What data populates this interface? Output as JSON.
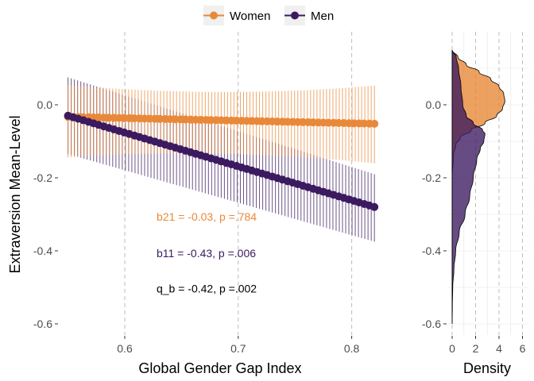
{
  "colors": {
    "women": "#e8893a",
    "men": "#3b1a5f",
    "grid": "#c7c7c7",
    "dashed": "#bdbdbd"
  },
  "legend": {
    "women": "Women",
    "men": "Men"
  },
  "chart_data": [
    {
      "type": "line",
      "xlabel": "Global Gender Gap Index",
      "ylabel": "Extraversion Mean-Level",
      "xlim": [
        0.53,
        0.84
      ],
      "ylim": [
        -0.64,
        0.19
      ],
      "x_ticks": [
        0.6,
        0.7,
        0.8
      ],
      "x_tick_labels": [
        "0.6",
        "0.7",
        "0.8"
      ],
      "y_ticks": [
        0.0,
        -0.2,
        -0.4,
        -0.6
      ],
      "y_tick_labels": [
        "0.0",
        "-0.2",
        "-0.4",
        "-0.6"
      ],
      "grid": false,
      "vlines_dashed": [
        0.6,
        0.7,
        0.8
      ],
      "legend_position": "top",
      "series": [
        {
          "name": "Women",
          "x_range": [
            0.55,
            0.82
          ],
          "fit": [
            -0.033,
            -0.052
          ],
          "ci_lower": [
            -0.135,
            -0.13
          ],
          "ci_upper": [
            0.045,
            0.022
          ]
        },
        {
          "name": "Men",
          "x_range": [
            0.55,
            0.82
          ],
          "fit": [
            -0.03,
            -0.28
          ],
          "ci_lower": [
            -0.135,
            -0.375
          ],
          "ci_upper": [
            0.075,
            -0.19
          ]
        }
      ],
      "annotations": [
        {
          "text": "b21 = -0.03, p =.784",
          "series": "Women",
          "x": 0.628,
          "y": -0.307
        },
        {
          "text": "b11 = -0.43, p =.006",
          "series": "Men",
          "x": 0.628,
          "y": -0.407
        },
        {
          "text": "q_b = -0.42, p =.002",
          "series": "",
          "x": 0.628,
          "y": -0.503
        }
      ]
    },
    {
      "type": "area",
      "xlabel": "Density",
      "xlim": [
        -0.4,
        6.5
      ],
      "x_ticks": [
        0,
        2,
        4,
        6
      ],
      "x_tick_labels": [
        "0",
        "2",
        "4",
        "6"
      ],
      "orientation": "horizontal",
      "series": [
        {
          "name": "Women",
          "y": [
            0.15,
            0.13,
            0.11,
            0.09,
            0.07,
            0.05,
            0.03,
            0.01,
            -0.01,
            -0.03,
            -0.05,
            -0.07,
            -0.09,
            -0.11,
            -0.14,
            -0.2,
            -0.3,
            -0.4,
            -0.5,
            -0.6
          ],
          "density": [
            0,
            0.5,
            1.2,
            2.3,
            3.3,
            4.0,
            4.4,
            4.5,
            4.3,
            3.8,
            2.8,
            1.6,
            0.7,
            0.3,
            0.1,
            0,
            0,
            0,
            0,
            0
          ]
        },
        {
          "name": "Men",
          "y": [
            0.15,
            0.13,
            0.1,
            0.05,
            0.0,
            -0.03,
            -0.05,
            -0.07,
            -0.08,
            -0.1,
            -0.12,
            -0.15,
            -0.2,
            -0.25,
            -0.3,
            -0.35,
            -0.4,
            -0.45,
            -0.5,
            -0.55,
            -0.6
          ],
          "density": [
            0,
            0.35,
            0.55,
            0.75,
            0.9,
            1.2,
            1.8,
            2.6,
            2.8,
            2.7,
            2.4,
            2.1,
            1.8,
            1.5,
            1.1,
            0.6,
            0.3,
            0.15,
            0.05,
            0.02,
            0
          ]
        }
      ]
    }
  ]
}
